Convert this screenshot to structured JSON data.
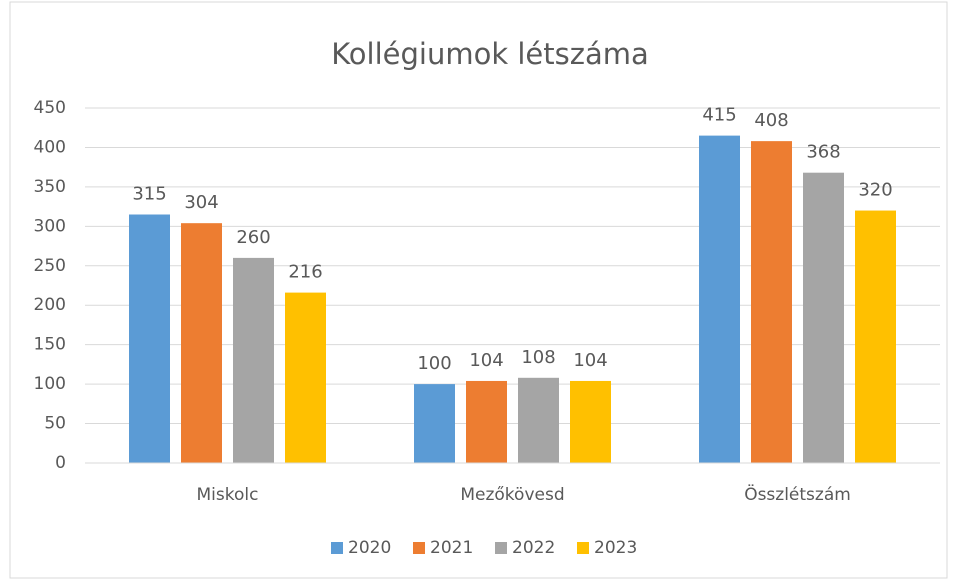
{
  "chart_data": {
    "type": "bar",
    "title": "Kollégiumok létszáma",
    "categories": [
      "Miskolc",
      "Mezőkövesd",
      "Összlétszám"
    ],
    "series": [
      {
        "name": "2020",
        "color": "#5b9bd5",
        "values": [
          315,
          100,
          415
        ]
      },
      {
        "name": "2021",
        "color": "#ed7d31",
        "values": [
          304,
          104,
          408
        ]
      },
      {
        "name": "2022",
        "color": "#a5a5a5",
        "values": [
          260,
          108,
          368
        ]
      },
      {
        "name": "2023",
        "color": "#ffc000",
        "values": [
          216,
          104,
          320
        ]
      }
    ],
    "ylim": [
      0,
      450
    ],
    "yticks": [
      0,
      50,
      100,
      150,
      200,
      250,
      300,
      350,
      400,
      450
    ],
    "grid": true,
    "legend": "bottom"
  }
}
